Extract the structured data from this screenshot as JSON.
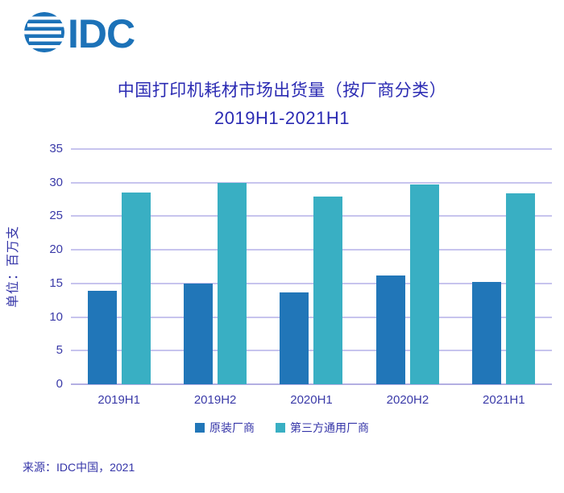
{
  "logo": {
    "text": "IDC",
    "color": "#1C72B8"
  },
  "header": {
    "title": "中国打印机耗材市场出货量（按厂商分类）",
    "subtitle": "2019H1-2021H1"
  },
  "chart_data": {
    "type": "bar",
    "categories": [
      "2019H1",
      "2019H2",
      "2020H1",
      "2020H2",
      "2021H1"
    ],
    "series": [
      {
        "name": "原装厂商",
        "color": "#2176B8",
        "values": [
          13.9,
          15.0,
          13.7,
          16.2,
          15.2
        ]
      },
      {
        "name": "第三方通用厂商",
        "color": "#39AFC3",
        "values": [
          28.5,
          30.0,
          27.9,
          29.7,
          28.4
        ]
      }
    ],
    "title": "中国打印机耗材市场出货量（按厂商分类） 2019H1-2021H1",
    "xlabel": "",
    "ylabel": "单位：百万支",
    "ylim": [
      0,
      35
    ],
    "ytick_step": 5,
    "grid": true,
    "legend_position": "bottom"
  },
  "footer": {
    "source": "来源：IDC中国，2021"
  },
  "colors": {
    "text": "#3535A8",
    "title": "#2B2BB3",
    "gridline": "#C7C4EE",
    "axis_line": "#B3AFE2"
  }
}
